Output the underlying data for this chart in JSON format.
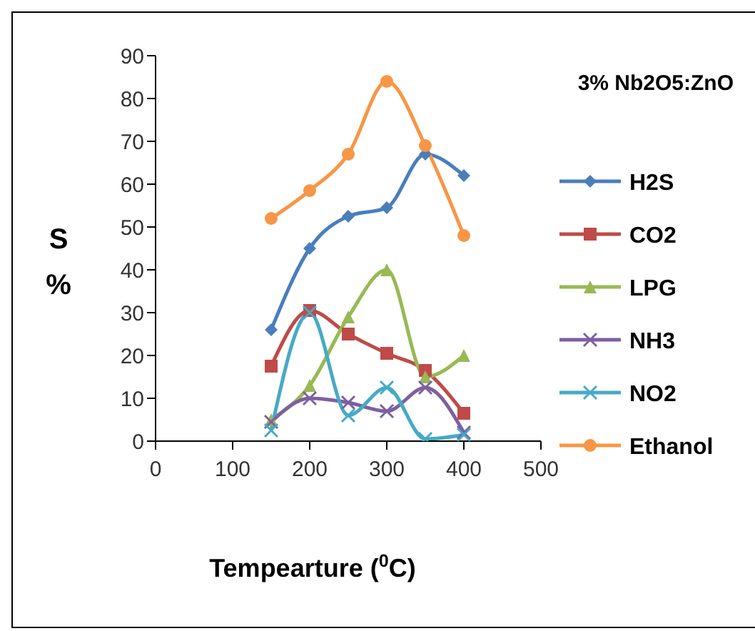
{
  "chart_data": {
    "type": "line",
    "title": "3% Nb2O5:ZnO",
    "xlabel": "Tempearture ($^{0}$C)",
    "ylabel": "S %",
    "x": [
      150,
      200,
      250,
      300,
      350,
      400
    ],
    "series": [
      {
        "name": "H2S",
        "color": "#4a7ebb",
        "marker": "diamond",
        "values": [
          26,
          45,
          52.5,
          54.5,
          67,
          62
        ]
      },
      {
        "name": "CO2",
        "color": "#be4b48",
        "marker": "square",
        "values": [
          17.5,
          30.5,
          25,
          20.5,
          16.5,
          6.5
        ]
      },
      {
        "name": "LPG",
        "color": "#98b954",
        "marker": "triangle",
        "values": [
          5,
          13,
          29,
          40,
          15,
          20
        ]
      },
      {
        "name": "NH3",
        "color": "#7d60a0",
        "marker": "cross",
        "values": [
          4.5,
          10,
          9,
          7,
          12.5,
          2
        ]
      },
      {
        "name": "NO2",
        "color": "#46aac5",
        "marker": "cross",
        "values": [
          2.5,
          30,
          6,
          12.5,
          0.5,
          1.5
        ]
      },
      {
        "name": "Ethanol",
        "color": "#f79646",
        "marker": "circle",
        "values": [
          52,
          58.5,
          67,
          84,
          69,
          48
        ]
      }
    ],
    "xlim": [
      0,
      500
    ],
    "xticks": [
      0,
      100,
      200,
      300,
      400,
      500
    ],
    "ylim": [
      0,
      90
    ],
    "yticks": [
      0,
      10,
      20,
      30,
      40,
      50,
      60,
      70,
      80,
      90
    ],
    "grid": false,
    "legend": "right"
  }
}
